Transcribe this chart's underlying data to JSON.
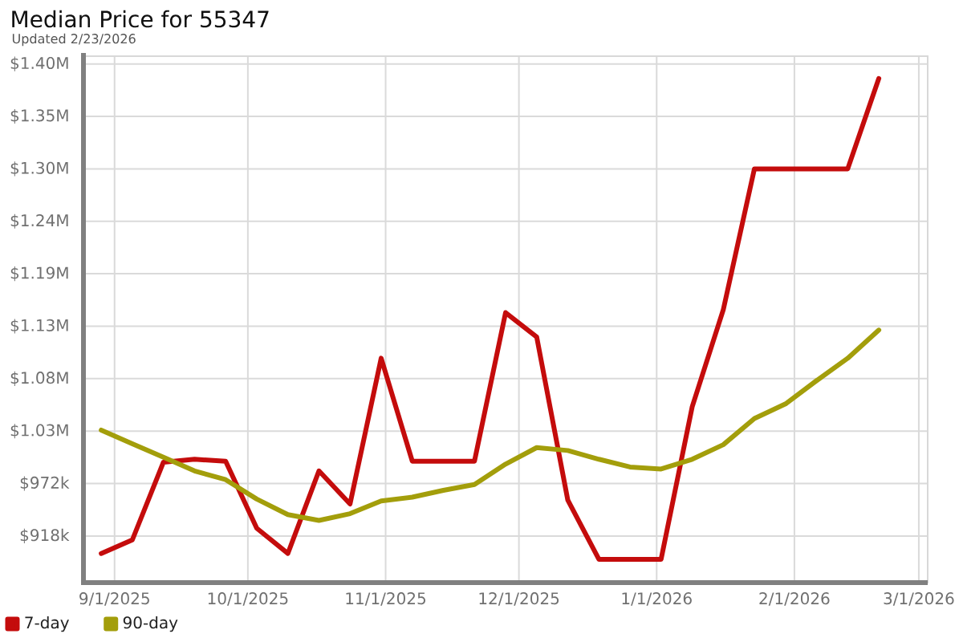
{
  "chart_data": {
    "type": "line",
    "title": "Median Price for 55347",
    "subtitle": "Updated 2/23/2026",
    "x": [
      "2025-08-29",
      "2025-09-05",
      "2025-09-12",
      "2025-09-19",
      "2025-09-26",
      "2025-10-03",
      "2025-10-10",
      "2025-10-17",
      "2025-10-24",
      "2025-10-31",
      "2025-11-07",
      "2025-11-14",
      "2025-11-21",
      "2025-11-28",
      "2025-12-05",
      "2025-12-12",
      "2025-12-19",
      "2025-12-26",
      "2026-01-02",
      "2026-01-09",
      "2026-01-16",
      "2026-01-23",
      "2026-01-30",
      "2026-02-06",
      "2026-02-13",
      "2026-02-20"
    ],
    "series": [
      {
        "name": "7-day",
        "color": "#c40c0c",
        "values": [
          900000,
          914000,
          994000,
          997000,
          995000,
          926000,
          900000,
          985000,
          951000,
          1101000,
          995000,
          995000,
          995000,
          1148000,
          1123000,
          955000,
          894000,
          894000,
          894000,
          1051000,
          1151000,
          1296000,
          1296000,
          1296000,
          1296000,
          1389000
        ]
      },
      {
        "name": "90-day",
        "color": "#a39e0b",
        "values": [
          1027000,
          1013000,
          999000,
          985000,
          976000,
          956000,
          940000,
          934000,
          941000,
          954000,
          958000,
          965000,
          971000,
          992000,
          1009000,
          1006000,
          997000,
          989000,
          987000,
          997000,
          1012000,
          1039000,
          1054000,
          1078000,
          1101000,
          1130000
        ]
      }
    ],
    "xlim": [
      "2025-08-25",
      "2026-03-03"
    ],
    "xticks": [
      {
        "value": "2025-09-01",
        "label": "9/1/2025"
      },
      {
        "value": "2025-10-01",
        "label": "10/1/2025"
      },
      {
        "value": "2025-11-01",
        "label": "11/1/2025"
      },
      {
        "value": "2025-12-01",
        "label": "12/1/2025"
      },
      {
        "value": "2026-01-01",
        "label": "1/1/2026"
      },
      {
        "value": "2026-02-01",
        "label": "2/1/2026"
      },
      {
        "value": "2026-03-01",
        "label": "3/1/2026"
      }
    ],
    "ylim": [
      870000,
      1412000
    ],
    "yticks": [
      {
        "value": 918000,
        "label": "$918k"
      },
      {
        "value": 972000,
        "label": "$972k"
      },
      {
        "value": 1026000,
        "label": "$1.03M"
      },
      {
        "value": 1080000,
        "label": "$1.08M"
      },
      {
        "value": 1134000,
        "label": "$1.13M"
      },
      {
        "value": 1188000,
        "label": "$1.19M"
      },
      {
        "value": 1242000,
        "label": "$1.24M"
      },
      {
        "value": 1296000,
        "label": "$1.30M"
      },
      {
        "value": 1350000,
        "label": "$1.35M"
      },
      {
        "value": 1404000,
        "label": "$1.40M"
      }
    ],
    "grid": true,
    "legend": "bottom left",
    "marker": "none",
    "line_style": "solid"
  }
}
